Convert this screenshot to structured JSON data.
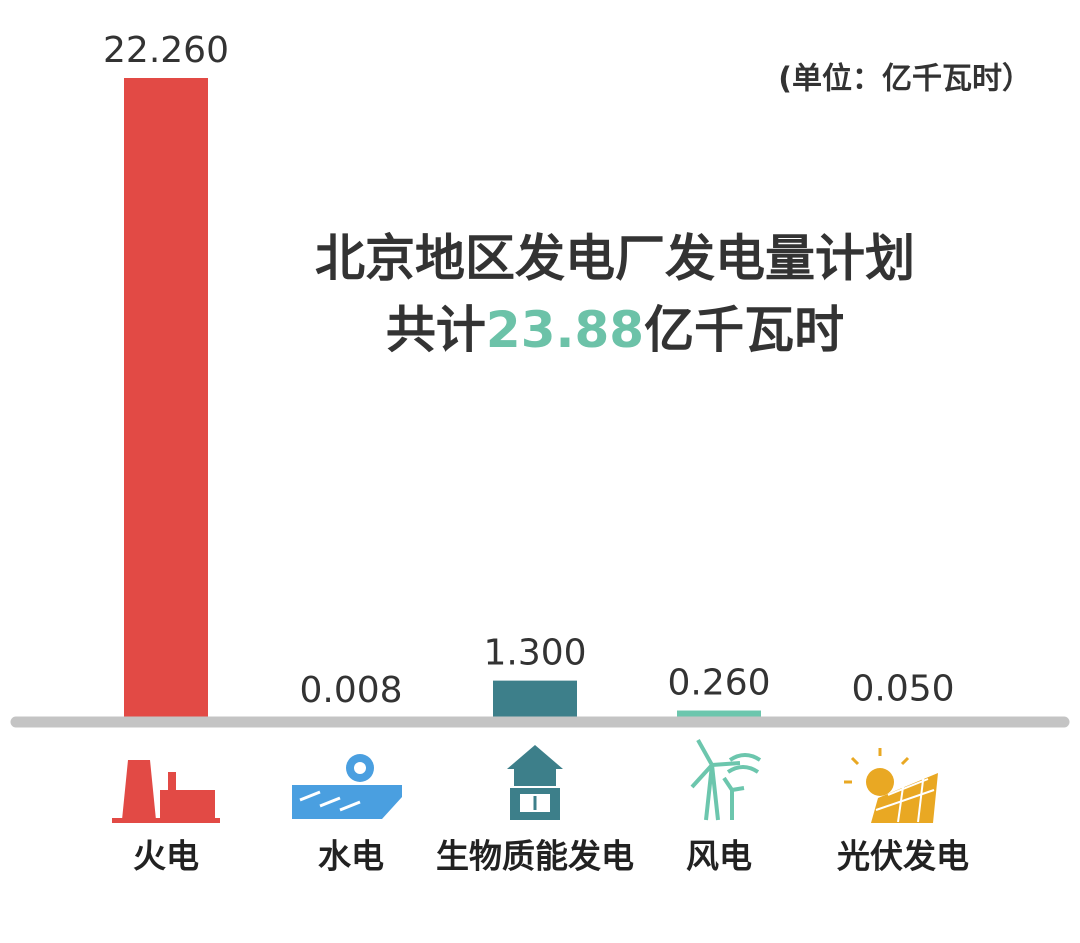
{
  "chart_data": {
    "type": "bar",
    "title": "北京地区发电厂发电量计划",
    "total_prefix": "共计",
    "total": 23.88,
    "total_unit": "亿千瓦时",
    "unit_note": "(单位：亿千瓦时）",
    "categories": [
      "火电",
      "水电",
      "生物质能发电",
      "风电",
      "光伏发电"
    ],
    "values": [
      22.26,
      0.008,
      1.3,
      0.26,
      0.05
    ],
    "value_labels": [
      "22.260",
      "0.008",
      "1.300",
      "0.260",
      "0.050"
    ],
    "colors": [
      "#e24a45",
      "#4a9fe0",
      "#3d7f8a",
      "#6cc6ad",
      "#e9a823"
    ]
  }
}
